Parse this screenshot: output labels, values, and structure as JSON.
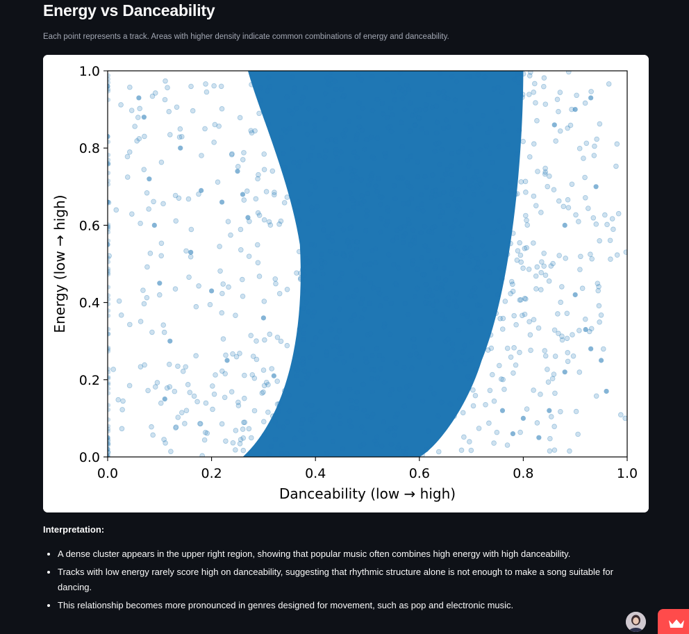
{
  "page": {
    "title": "Energy vs Danceability",
    "subtitle": "Each point represents a track. Areas with higher density indicate common combinations of energy and danceability.",
    "interpretation_label": "Interpretation:",
    "bullets": [
      "A dense cluster appears in the upper right region, showing that popular music often combines high energy with high danceability.",
      "Tracks with low energy rarely score high on danceability, suggesting that rhythmic structure alone is not enough to make a song suitable for dancing.",
      "This relationship becomes more pronounced in genres designed for movement, such as pop and electronic music."
    ]
  },
  "chart_data": {
    "type": "scatter",
    "xlabel": "Danceability (low → high)",
    "ylabel": "Energy (low → high)",
    "xlim": [
      0.0,
      1.0
    ],
    "ylim": [
      0.0,
      1.0
    ],
    "xticks": [
      "0.0",
      "0.2",
      "0.4",
      "0.6",
      "0.8",
      "1.0"
    ],
    "yticks": [
      "0.0",
      "0.2",
      "0.4",
      "0.6",
      "0.8",
      "1.0"
    ],
    "grid": false,
    "point_color": "#1f77b4",
    "point_alpha": 0.2,
    "density_core": {
      "description_regions": [
        {
          "x": [
            0.35,
            0.78
          ],
          "y": [
            0.55,
            1.0
          ]
        },
        {
          "x": [
            0.42,
            0.72
          ],
          "y": [
            0.2,
            0.55
          ]
        },
        {
          "x": [
            0.28,
            0.62
          ],
          "y": [
            0.0,
            0.2
          ]
        }
      ]
    },
    "sample_points": [
      [
        0.0,
        0.0
      ],
      [
        0.0,
        0.02
      ],
      [
        0.0,
        0.05
      ],
      [
        0.0,
        0.55
      ],
      [
        0.0,
        0.66
      ],
      [
        0.0,
        0.83
      ],
      [
        0.0,
        0.96
      ],
      [
        0.06,
        0.93
      ],
      [
        0.07,
        0.88
      ],
      [
        0.08,
        0.72
      ],
      [
        0.09,
        0.6
      ],
      [
        0.1,
        0.45
      ],
      [
        0.11,
        0.15
      ],
      [
        0.12,
        0.3
      ],
      [
        0.14,
        0.8
      ],
      [
        0.16,
        0.53
      ],
      [
        0.18,
        0.69
      ],
      [
        0.2,
        0.43
      ],
      [
        0.22,
        0.66
      ],
      [
        0.23,
        0.25
      ],
      [
        0.25,
        0.74
      ],
      [
        0.26,
        0.68
      ],
      [
        0.27,
        0.62
      ],
      [
        0.3,
        0.36
      ],
      [
        0.32,
        0.21
      ],
      [
        0.33,
        0.08
      ],
      [
        0.86,
        0.86
      ],
      [
        0.88,
        0.6
      ],
      [
        0.9,
        0.42
      ],
      [
        0.92,
        0.33
      ],
      [
        0.93,
        0.28
      ],
      [
        0.94,
        0.7
      ],
      [
        0.95,
        0.25
      ],
      [
        0.96,
        0.17
      ],
      [
        0.88,
        0.22
      ],
      [
        0.85,
        0.12
      ],
      [
        0.83,
        0.05
      ],
      [
        0.8,
        0.1
      ],
      [
        0.78,
        0.06
      ],
      [
        0.76,
        0.12
      ],
      [
        0.9,
        0.9
      ],
      [
        0.93,
        0.93
      ]
    ]
  }
}
